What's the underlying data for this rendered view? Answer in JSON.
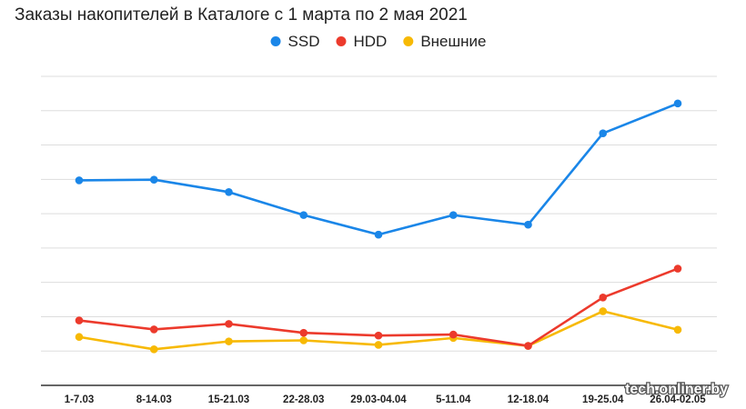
{
  "chart_data": {
    "type": "line",
    "title": "Заказы накопителей в Каталоге с 1 марта по 2 мая 2021",
    "categories": [
      "1-7.03",
      "8-14.03",
      "15-21.03",
      "22-28.03",
      "29.03-04.04",
      "5-11.04",
      "12-18.04",
      "19-25.04",
      "26.04-02.05"
    ],
    "series": [
      {
        "name": "SSD",
        "color": "#1a86e8",
        "values": [
          59.7,
          59.9,
          56.3,
          49.6,
          43.9,
          49.6,
          46.8,
          73.4,
          82.1
        ]
      },
      {
        "name": "HDD",
        "color": "#ec3a2c",
        "values": [
          18.9,
          16.3,
          17.9,
          15.3,
          14.5,
          14.8,
          11.5,
          25.6,
          34.0
        ]
      },
      {
        "name": "Внешние",
        "color": "#f7b904",
        "values": [
          14.1,
          10.5,
          12.8,
          13.1,
          11.8,
          13.8,
          11.5,
          21.6,
          16.2
        ]
      }
    ],
    "ylim": [
      0,
      90
    ],
    "yticks": [
      0,
      10,
      20,
      30,
      40,
      50,
      60,
      70,
      80,
      90
    ],
    "ytick_labels_shown": false,
    "grid": true,
    "legend_position": "top-center",
    "watermark": "tech.onliner.by"
  }
}
